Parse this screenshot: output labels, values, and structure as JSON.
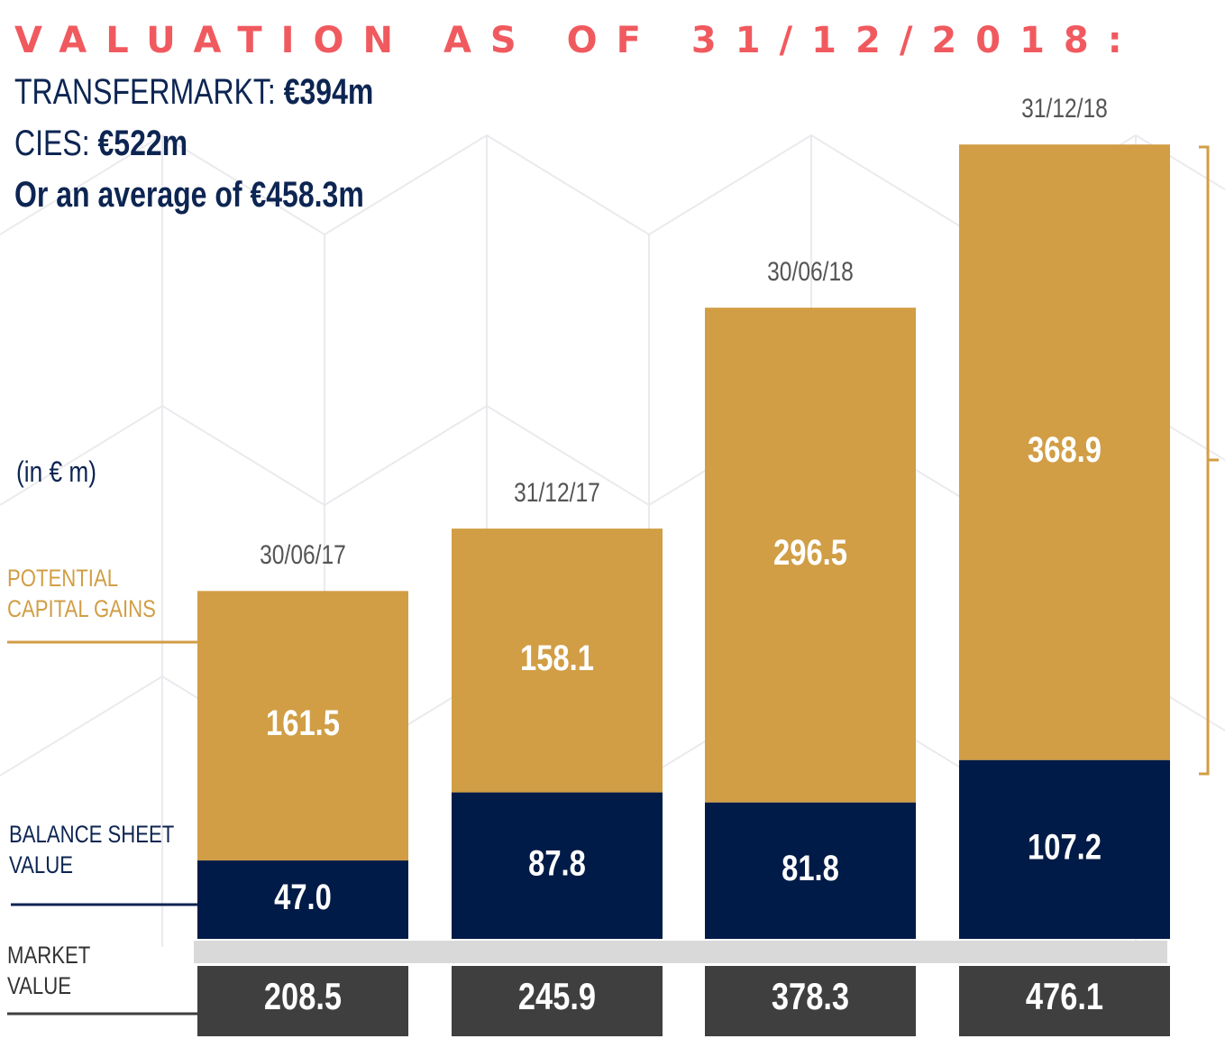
{
  "header": {
    "title": "VALUATION AS OF 31/12/2018:",
    "transfermarkt_label": "TRANSFERMARKT: ",
    "transfermarkt_value": "€394m",
    "cies_label": "CIES: ",
    "cies_value": "€522m",
    "average_text": "Or an average of €458.3m"
  },
  "units_label": "(in € m)",
  "legend": {
    "potential_gains": [
      "POTENTIAL",
      "CAPITAL GAINS"
    ],
    "balance_sheet": [
      "BALANCE SHEET",
      "VALUE"
    ],
    "market_value": [
      "MARKET",
      "VALUE"
    ]
  },
  "colors": {
    "potential_gains": "#d19e45",
    "balance_sheet": "#001b47",
    "market_value": "#3f3f3f",
    "separator": "#d9d9d9",
    "title": "#f05a5f",
    "text_dark": "#0d2552"
  },
  "chart_data": {
    "type": "bar",
    "stacked": true,
    "categories": [
      "30/06/17",
      "31/12/17",
      "30/06/18",
      "31/12/18"
    ],
    "series": [
      {
        "name": "BALANCE SHEET VALUE",
        "values": [
          47.0,
          87.8,
          81.8,
          107.2
        ]
      },
      {
        "name": "POTENTIAL CAPITAL GAINS",
        "values": [
          161.5,
          158.1,
          296.5,
          368.9
        ]
      }
    ],
    "totals": {
      "name": "MARKET VALUE",
      "values": [
        208.5,
        245.9,
        378.3,
        476.1
      ]
    },
    "ylabel": "(in € m)"
  }
}
